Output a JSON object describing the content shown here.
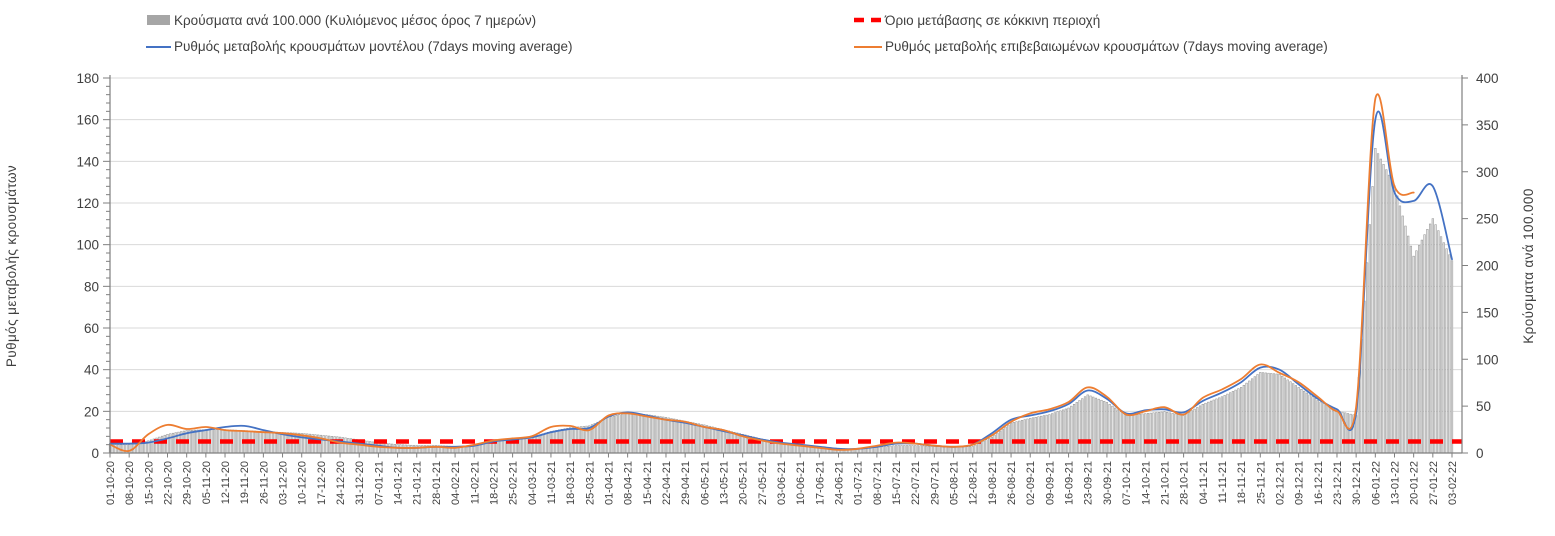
{
  "legend": {
    "bars": {
      "label": "Κρούσματα ανά 100.000 (Κυλιόμενος μέσος όρος 7 ημερών)",
      "color": "#a6a6a6"
    },
    "threshold": {
      "label": "Όριο μετάβασης σε κόκκινη περιοχή",
      "color": "#ff0000"
    },
    "model": {
      "label": "Ρυθμός μεταβολής κρουσμάτων μοντέλου (7days moving average)",
      "color": "#4472c4"
    },
    "confirmed": {
      "label": "Ρυθμός μεταβολής επιβεβαιωμένων κρουσμάτων (7days moving average)",
      "color": "#ed7d31"
    }
  },
  "chart_data": {
    "type": "bar+line",
    "title": "",
    "grid": true,
    "legend_position": "top",
    "axes": {
      "left": {
        "title": "Ρυθμός μεταβολής κρουσμάτων",
        "min": 0,
        "max": 180,
        "step": 20,
        "minor_step": 4
      },
      "right": {
        "title": "Κρούσματα ανά 100.000",
        "min": 0,
        "max": 400,
        "step": 50
      }
    },
    "x": [
      "01-10-20",
      "08-10-20",
      "15-10-20",
      "22-10-20",
      "29-10-20",
      "05-11-20",
      "12-11-20",
      "19-11-20",
      "26-11-20",
      "03-12-20",
      "10-12-20",
      "17-12-20",
      "24-12-20",
      "31-12-20",
      "07-01-21",
      "14-01-21",
      "21-01-21",
      "28-01-21",
      "04-02-21",
      "11-02-21",
      "18-02-21",
      "25-02-21",
      "04-03-21",
      "11-03-21",
      "18-03-21",
      "25-03-21",
      "01-04-21",
      "08-04-21",
      "15-04-21",
      "22-04-21",
      "29-04-21",
      "06-05-21",
      "13-05-21",
      "20-05-21",
      "27-05-21",
      "03-06-21",
      "10-06-21",
      "17-06-21",
      "24-06-21",
      "01-07-21",
      "08-07-21",
      "15-07-21",
      "22-07-21",
      "29-07-21",
      "05-08-21",
      "12-08-21",
      "19-08-21",
      "26-08-21",
      "02-09-21",
      "09-09-21",
      "16-09-21",
      "23-09-21",
      "30-09-21",
      "07-10-21",
      "14-10-21",
      "21-10-21",
      "28-10-21",
      "04-11-21",
      "11-11-21",
      "18-11-21",
      "25-11-21",
      "02-12-21",
      "09-12-21",
      "16-12-21",
      "23-12-21",
      "30-12-21",
      "06-01-22",
      "13-01-22",
      "20-01-22",
      "27-01-22",
      "03-02-22"
    ],
    "series": [
      {
        "name": "Κρούσματα ανά 100.000 (Κυλιόμενος μέσος όρος 7 ημερών)",
        "type": "bar",
        "axis": "right",
        "fill": "#e3e3e3",
        "border": "#8f8f8f",
        "values": [
          9,
          9,
          13,
          20,
          24,
          25,
          25,
          24,
          23,
          22,
          21,
          19,
          17,
          14,
          11,
          9,
          8,
          8,
          7,
          8,
          12,
          15,
          17,
          23,
          27,
          29,
          38,
          43,
          41,
          38,
          34,
          30,
          25,
          20,
          15,
          11,
          9,
          7,
          5,
          4,
          6,
          8,
          8,
          7,
          6,
          7,
          17,
          32,
          37,
          41,
          48,
          62,
          54,
          40,
          42,
          44,
          40,
          52,
          60,
          70,
          86,
          84,
          70,
          56,
          45,
          40,
          325,
          285,
          210,
          250,
          205
        ]
      },
      {
        "name": "Ρυθμός μεταβολής κρουσμάτων μοντέλου (7days moving average)",
        "type": "line",
        "axis": "left",
        "color": "#4472c4",
        "values": [
          4.5,
          4.5,
          5,
          7,
          9.5,
          11,
          12.5,
          13,
          11,
          9,
          7.5,
          6.5,
          5.5,
          4.5,
          3.5,
          2.5,
          2.5,
          3,
          3,
          3.5,
          5.5,
          6.5,
          7.5,
          10,
          11.5,
          12,
          17.5,
          19.5,
          18,
          16,
          14.5,
          12.5,
          10.5,
          8.5,
          6.5,
          5,
          4,
          3,
          2,
          2,
          3,
          4.5,
          4.5,
          3.5,
          3,
          4,
          9.5,
          16,
          18,
          20,
          23.5,
          30,
          26,
          19,
          20.5,
          21,
          19.5,
          25,
          29,
          34,
          41,
          40,
          33,
          26,
          21,
          19,
          160,
          125,
          121,
          128,
          93
        ]
      },
      {
        "name": "Ρυθμός μεταβολής επιβεβαιωμένων κρουσμάτων (7days moving average)",
        "type": "line",
        "axis": "left",
        "color": "#ed7d31",
        "values": [
          4,
          1,
          9,
          13.5,
          11.5,
          12.5,
          11,
          10.5,
          10,
          9.5,
          8.5,
          7,
          5,
          4,
          3,
          2.5,
          2.5,
          3,
          2.5,
          4,
          6,
          7,
          8,
          12.5,
          13,
          11,
          18,
          19,
          17.5,
          16,
          15,
          12.5,
          11,
          8,
          6,
          4.5,
          3.5,
          2.5,
          1.5,
          2,
          3.5,
          5,
          4.5,
          3.5,
          3,
          4,
          8.5,
          15,
          19,
          21,
          24.5,
          31.5,
          27,
          18.5,
          20,
          22,
          18.5,
          26.5,
          30.5,
          35.5,
          42.5,
          38.5,
          34,
          27,
          20,
          22,
          170,
          128,
          125,
          null,
          null
        ]
      },
      {
        "name": "Όριο μετάβασης σε κόκκινη περιοχή",
        "type": "threshold",
        "axis": "left",
        "color": "#ff0000",
        "value": 5.5
      }
    ]
  }
}
